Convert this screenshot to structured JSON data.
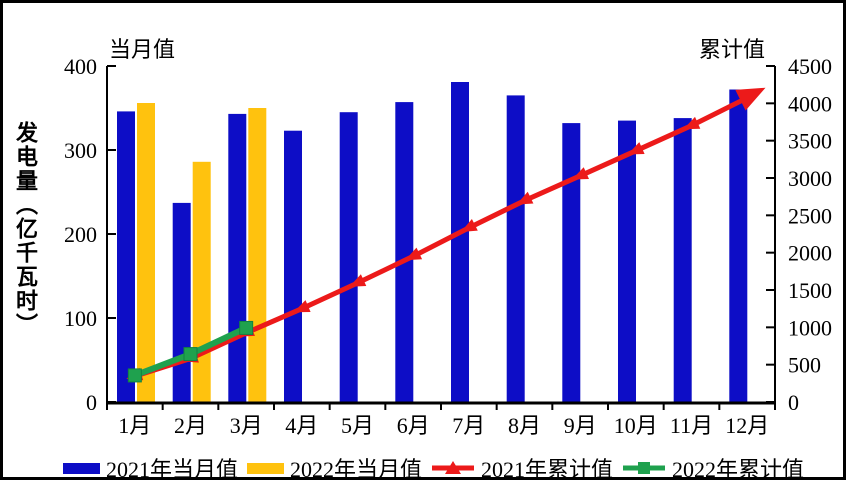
{
  "chart_data": {
    "type": "combo-bar-line",
    "title": "",
    "categories": [
      "1月",
      "2月",
      "3月",
      "4月",
      "5月",
      "6月",
      "7月",
      "8月",
      "9月",
      "10月",
      "11月",
      "12月"
    ],
    "left_axis": {
      "header": "当月值",
      "title": "发电量（亿千瓦时）",
      "ticks": [
        0,
        100,
        200,
        300,
        400
      ],
      "max": 400
    },
    "right_axis": {
      "header": "累计值",
      "ticks": [
        0,
        500,
        1000,
        1500,
        2000,
        2500,
        3000,
        3500,
        4000,
        4500
      ],
      "max": 4500
    },
    "series": [
      {
        "name": "2021年当月值",
        "type": "bar",
        "axis": "left",
        "color": "#0D0DC6",
        "values": [
          346,
          237,
          343,
          323,
          345,
          357,
          381,
          365,
          332,
          335,
          338,
          372
        ]
      },
      {
        "name": "2022年当月值",
        "type": "bar",
        "axis": "left",
        "color": "#FFC20E",
        "values": [
          356,
          286,
          350,
          null,
          null,
          null,
          null,
          null,
          null,
          null,
          null,
          null
        ]
      },
      {
        "name": "2021年累计值",
        "type": "line",
        "marker": "triangle-arrow",
        "axis": "right",
        "color": "#EC1A1A",
        "values": [
          346,
          583,
          926,
          1249,
          1594,
          1951,
          2332,
          2697,
          3029,
          3364,
          3702,
          4074
        ]
      },
      {
        "name": "2022年累计值",
        "type": "line",
        "marker": "square",
        "axis": "right",
        "color": "#1FA14E",
        "values": [
          356,
          642,
          992,
          null,
          null,
          null,
          null,
          null,
          null,
          null,
          null,
          null
        ]
      }
    ],
    "legend_position": "bottom",
    "grid": false,
    "axis_color": "#000000"
  }
}
